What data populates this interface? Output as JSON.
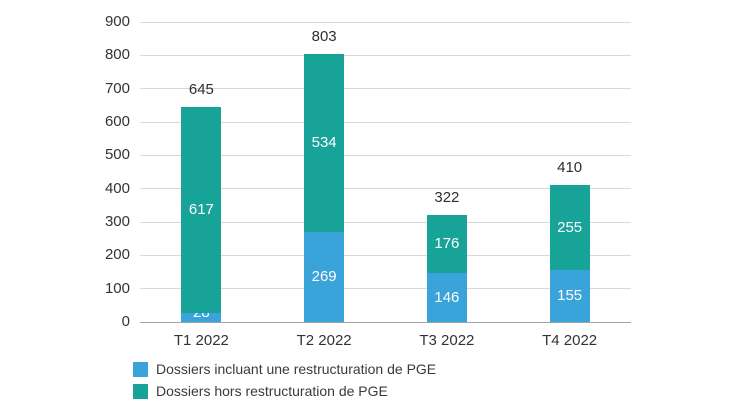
{
  "chart_data": {
    "type": "bar",
    "stacked": true,
    "title": "",
    "xlabel": "",
    "ylabel": "",
    "categories": [
      "T1 2022",
      "T2 2022",
      "T3 2022",
      "T4 2022"
    ],
    "series": [
      {
        "name": "Dossiers incluant une restructuration de PGE",
        "color": "#3aa3da",
        "values": [
          28,
          269,
          146,
          155
        ]
      },
      {
        "name": "Dossiers hors restructuration de PGE",
        "color": "#17a398",
        "values": [
          617,
          534,
          176,
          255
        ]
      }
    ],
    "totals": [
      645,
      803,
      322,
      410
    ],
    "ylim": [
      0,
      900
    ],
    "ytick_step": 100,
    "grid": true,
    "legend_position": "bottom-left"
  },
  "colors": {
    "gridline": "#d8d8d8",
    "zero_axis": "#a3a3a3",
    "tick_text": "#333333",
    "total_text": "#2e2e2e",
    "segment_text": "#ffffff",
    "background": "#ffffff"
  }
}
